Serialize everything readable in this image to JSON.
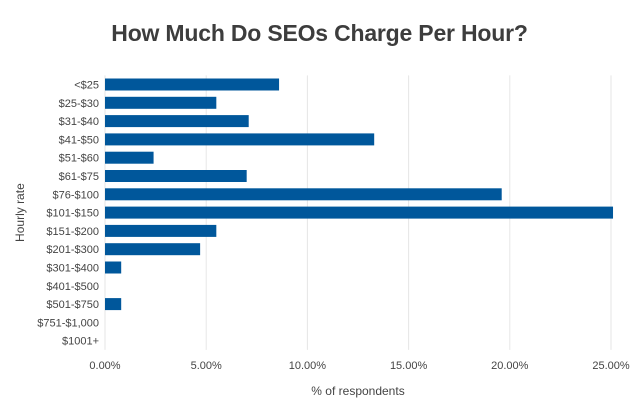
{
  "chart_data": {
    "type": "bar",
    "orientation": "horizontal",
    "title": "How Much Do SEOs Charge Per Hour?",
    "xlabel": "% of respondents",
    "ylabel": "Hourly rate",
    "categories": [
      "<$25",
      "$25-$30",
      "$31-$40",
      "$41-$50",
      "$51-$60",
      "$61-$75",
      "$76-$100",
      "$101-$150",
      "$151-$200",
      "$201-$300",
      "$301-$400",
      "$401-$500",
      "$501-$750",
      "$751-$1,000",
      "$1001+"
    ],
    "values": [
      8.6,
      5.5,
      7.1,
      13.3,
      2.4,
      7.0,
      19.6,
      25.1,
      5.5,
      4.7,
      0.8,
      0,
      0.8,
      0,
      0
    ],
    "xlim": [
      0,
      25
    ],
    "xticks": [
      0,
      5,
      10,
      15,
      20,
      25
    ],
    "xtick_labels": [
      "0.00%",
      "5.00%",
      "10.00%",
      "15.00%",
      "20.00%",
      "25.00%"
    ],
    "grid": "vertical",
    "bar_color": "#00579b"
  }
}
